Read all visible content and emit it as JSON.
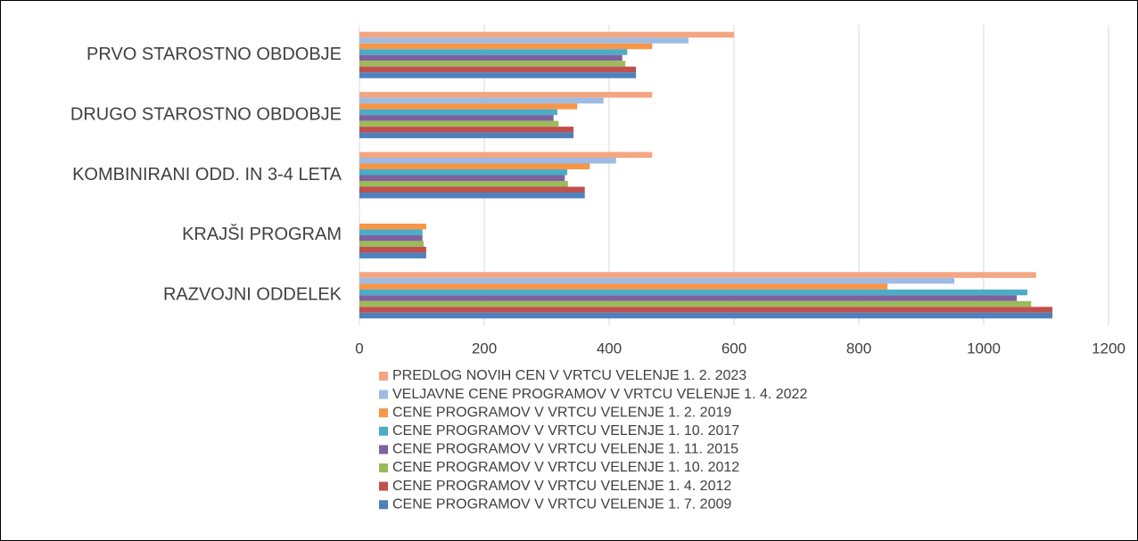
{
  "chart_data": {
    "type": "hbar",
    "categories": [
      "PRVO STAROSTNO OBDOBJE",
      "DRUGO STAROSTNO OBDOBJE",
      "KOMBINIRANI ODD. IN 3-4 LETA",
      "KRAJŠI PROGRAM",
      "RAZVOJNI ODDELEK"
    ],
    "series": [
      {
        "name": "PREDLOG NOVIH CEN V VRTCU VELENJE 1. 2. 2023",
        "color": "#f4a582",
        "values": [
          600,
          469,
          469,
          null,
          1084
        ]
      },
      {
        "name": "VELJAVNE CENE PROGRAMOV V VRTCU VELENJE 1. 4. 2022",
        "color": "#9dbbe3",
        "values": [
          527,
          391,
          411,
          null,
          953
        ]
      },
      {
        "name": "CENE PROGRAMOV V VRTCU VELENJE 1. 2. 2019",
        "color": "#f79646",
        "values": [
          469,
          349,
          369,
          107,
          846
        ]
      },
      {
        "name": "CENE PROGRAMOV V VRTCU VELENJE 1. 10. 2017",
        "color": "#4bacc6",
        "values": [
          429,
          317,
          333,
          101,
          1070
        ]
      },
      {
        "name": "CENE PROGRAMOV V VRTCU VELENJE 1. 11. 2015",
        "color": "#7f60a0",
        "values": [
          421,
          311,
          329,
          101,
          1053
        ]
      },
      {
        "name": "CENE PROGRAMOV V VRTCU VELENJE 1. 10. 2012",
        "color": "#9bbb59",
        "values": [
          426,
          319,
          334,
          103,
          1076
        ]
      },
      {
        "name": "CENE PROGRAMOV V VRTCU VELENJE 1. 4. 2012",
        "color": "#c0504d",
        "values": [
          443,
          343,
          361,
          107,
          1110
        ]
      },
      {
        "name": "CENE PROGRAMOV V VRTCU VELENJE 1. 7. 2009",
        "color": "#4f81bd",
        "values": [
          443,
          343,
          361,
          107,
          1110
        ]
      }
    ],
    "xlim": [
      0,
      1200
    ],
    "xticks": [
      0,
      200,
      400,
      600,
      800,
      1000,
      1200
    ],
    "grid": true
  }
}
